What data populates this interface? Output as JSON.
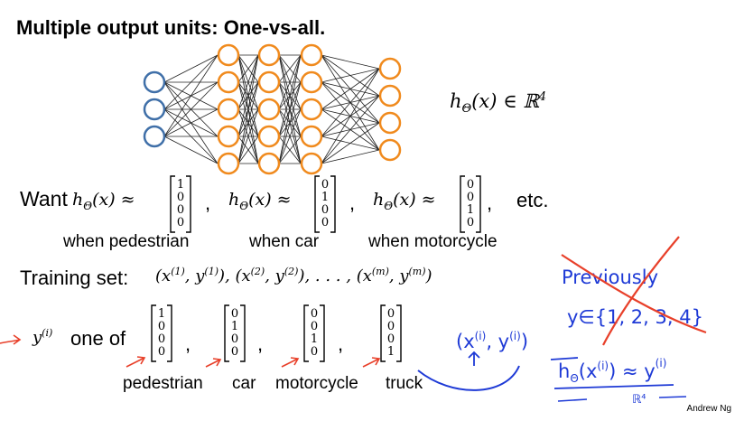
{
  "slide": {
    "title": "Multiple output units: One-vs-all.",
    "hypothesis": "hΘ(x) ∈ ℝ⁴",
    "want_label": "Want",
    "approx_expr": "hΘ(x) ≈",
    "vec_pedestrian": [
      "1",
      "0",
      "0",
      "0"
    ],
    "vec_car": [
      "0",
      "1",
      "0",
      "0"
    ],
    "vec_motorcycle": [
      "0",
      "0",
      "1",
      "0"
    ],
    "vec_truck": [
      "0",
      "0",
      "0",
      "1"
    ],
    "etc": "etc.",
    "when_pedestrian": "when pedestrian",
    "when_car": "when car",
    "when_motorcycle": "when motorcycle",
    "training_label": "Training set:",
    "training_expr": "(x(1), y(1)), (x(2), y(2)), . . . , (x(m), y(m))",
    "yi_label": "y(i) one of",
    "label_pedestrian": "pedestrian",
    "label_car": "car",
    "label_motorcycle": "motorcycle",
    "label_truck": "truck",
    "credit": "Andrew Ng"
  },
  "network": {
    "layer_sizes": [
      3,
      5,
      5,
      5,
      4
    ]
  },
  "annotations": {
    "previously": "Previously",
    "y_set": "y∈{1, 2, 3, 4}",
    "pair": "(x(i), y(i))",
    "approx": "hΘ(x(i)) ≈ y(i)",
    "r4": "ℝ⁴"
  },
  "colors": {
    "input": "#3f6fa8",
    "hidden": "#f08a1d",
    "ink_red": "#e8402a",
    "ink_blue": "#1e3ad6"
  }
}
